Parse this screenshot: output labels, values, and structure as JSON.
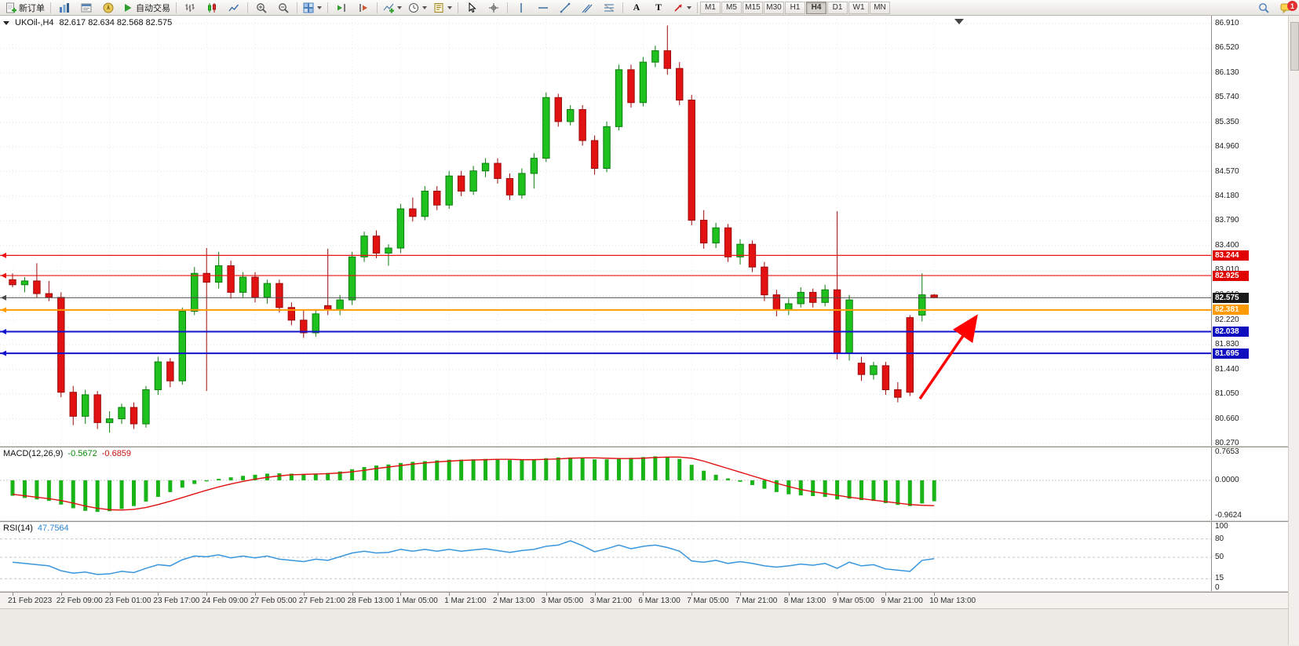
{
  "toolbar": {
    "new_order_label": "新订单",
    "auto_trading_label": "自动交易",
    "text_tool_label": "A",
    "label_tool_label": "T",
    "timeframes": [
      "M1",
      "M5",
      "M15",
      "M30",
      "H1",
      "H4",
      "D1",
      "W1",
      "MN"
    ],
    "active_timeframe": "H4",
    "notification_count": "1",
    "items": [
      {
        "id": "new-order",
        "label": "新订单"
      },
      {
        "id": "sep"
      },
      {
        "id": "market-watch"
      },
      {
        "id": "terminal"
      },
      {
        "id": "navigator"
      },
      {
        "id": "auto-trading",
        "label": "自动交易"
      },
      {
        "id": "sep"
      },
      {
        "id": "bar-chart"
      },
      {
        "id": "candlestick-chart"
      },
      {
        "id": "line-chart"
      },
      {
        "id": "sep"
      },
      {
        "id": "zoom-in"
      },
      {
        "id": "zoom-out"
      },
      {
        "id": "sep"
      },
      {
        "id": "tile-windows",
        "caret": true
      },
      {
        "id": "sep"
      },
      {
        "id": "auto-scroll"
      },
      {
        "id": "chart-shift"
      },
      {
        "id": "sep"
      },
      {
        "id": "indicators",
        "caret": true
      },
      {
        "id": "periods",
        "caret": true
      },
      {
        "id": "templates",
        "caret": true
      },
      {
        "id": "sep"
      },
      {
        "id": "cursor"
      },
      {
        "id": "crosshair"
      },
      {
        "id": "sep"
      },
      {
        "id": "vertical-line"
      },
      {
        "id": "horizontal-line"
      },
      {
        "id": "trendline"
      },
      {
        "id": "channel"
      },
      {
        "id": "fibonacci"
      },
      {
        "id": "sep"
      },
      {
        "id": "text-tool",
        "label": "A"
      },
      {
        "id": "label-tool",
        "label": "T"
      },
      {
        "id": "arrow-tool",
        "caret": true
      },
      {
        "id": "sep"
      },
      {
        "id": "timeframes"
      },
      {
        "id": "spacer"
      },
      {
        "id": "search"
      },
      {
        "id": "chat"
      }
    ]
  },
  "window": {
    "symbol_title": "UKOil-,H4",
    "ohlc": "82.617 82.634 82.568 82.575"
  },
  "chart": {
    "price_axis": [
      "86.910",
      "86.520",
      "86.130",
      "85.740",
      "85.350",
      "84.960",
      "84.570",
      "84.180",
      "83.790",
      "83.400",
      "83.010",
      "82.610",
      "82.220",
      "81.830",
      "81.440",
      "81.050",
      "80.660",
      "80.270"
    ],
    "levels": [
      {
        "value": "83.244",
        "color": "#ee1111",
        "width": 1.2,
        "badge": "#e00000"
      },
      {
        "value": "82.925",
        "color": "#ee1111",
        "width": 1.2,
        "badge": "#e00000"
      },
      {
        "value": "82.575",
        "color": "#4a4a4a",
        "width": 1,
        "badge": "#1a1a1a"
      },
      {
        "value": "82.381",
        "color": "#ff9a00",
        "width": 2,
        "badge": "#ff9a00"
      },
      {
        "value": "82.038",
        "color": "#1212cf",
        "width": 2,
        "badge": "#0f0fc0"
      },
      {
        "value": "81.695",
        "color": "#1212cf",
        "width": 2,
        "badge": "#0f0fc0"
      }
    ],
    "annotations": [
      {
        "type": "arrow",
        "direction": "up-right",
        "color": "#ff0000"
      }
    ],
    "candles": [
      [
        82.86,
        82.96,
        82.74,
        82.78
      ],
      [
        82.78,
        82.9,
        82.66,
        82.84
      ],
      [
        82.84,
        83.12,
        82.58,
        82.64
      ],
      [
        82.64,
        82.84,
        82.52,
        82.58
      ],
      [
        82.58,
        82.66,
        81.0,
        81.08
      ],
      [
        81.08,
        81.18,
        80.56,
        80.7
      ],
      [
        80.7,
        81.12,
        80.58,
        81.04
      ],
      [
        81.04,
        81.1,
        80.5,
        80.6
      ],
      [
        80.6,
        80.78,
        80.44,
        80.66
      ],
      [
        80.66,
        80.9,
        80.58,
        80.84
      ],
      [
        80.84,
        80.92,
        80.5,
        80.58
      ],
      [
        80.58,
        81.18,
        80.52,
        81.12
      ],
      [
        81.12,
        81.64,
        81.04,
        81.56
      ],
      [
        81.56,
        81.62,
        81.16,
        81.26
      ],
      [
        81.26,
        82.42,
        81.2,
        82.36
      ],
      [
        82.36,
        83.06,
        82.3,
        82.96
      ],
      [
        82.96,
        83.36,
        81.1,
        82.82
      ],
      [
        82.82,
        83.3,
        82.72,
        83.08
      ],
      [
        83.08,
        83.16,
        82.56,
        82.66
      ],
      [
        82.66,
        82.98,
        82.58,
        82.9
      ],
      [
        82.9,
        82.98,
        82.5,
        82.58
      ],
      [
        82.58,
        82.86,
        82.48,
        82.8
      ],
      [
        82.8,
        82.86,
        82.34,
        82.42
      ],
      [
        82.42,
        82.5,
        82.14,
        82.22
      ],
      [
        82.22,
        82.38,
        81.94,
        82.02
      ],
      [
        82.02,
        82.38,
        81.96,
        82.32
      ],
      [
        82.45,
        83.35,
        82.3,
        82.38
      ],
      [
        82.38,
        82.62,
        82.3,
        82.54
      ],
      [
        82.54,
        83.3,
        82.46,
        83.22
      ],
      [
        83.22,
        83.62,
        83.14,
        83.55
      ],
      [
        83.55,
        83.64,
        83.2,
        83.28
      ],
      [
        83.28,
        83.42,
        83.08,
        83.36
      ],
      [
        83.36,
        84.06,
        83.28,
        83.98
      ],
      [
        83.98,
        84.16,
        83.78,
        83.86
      ],
      [
        83.86,
        84.34,
        83.8,
        84.26
      ],
      [
        84.26,
        84.34,
        83.96,
        84.04
      ],
      [
        84.04,
        84.58,
        83.98,
        84.5
      ],
      [
        84.5,
        84.58,
        84.18,
        84.26
      ],
      [
        84.26,
        84.66,
        84.2,
        84.58
      ],
      [
        84.58,
        84.78,
        84.48,
        84.7
      ],
      [
        84.7,
        84.78,
        84.38,
        84.46
      ],
      [
        84.46,
        84.54,
        84.12,
        84.2
      ],
      [
        84.2,
        84.62,
        84.14,
        84.54
      ],
      [
        84.54,
        84.86,
        84.3,
        84.78
      ],
      [
        84.78,
        85.82,
        84.72,
        85.74
      ],
      [
        85.74,
        85.8,
        85.28,
        85.36
      ],
      [
        85.36,
        85.62,
        85.3,
        85.55
      ],
      [
        85.55,
        85.62,
        84.98,
        85.06
      ],
      [
        85.06,
        85.14,
        84.52,
        84.62
      ],
      [
        84.62,
        85.36,
        84.56,
        85.28
      ],
      [
        85.28,
        86.26,
        85.22,
        86.18
      ],
      [
        86.18,
        86.26,
        85.58,
        85.66
      ],
      [
        85.66,
        86.38,
        85.6,
        86.3
      ],
      [
        86.3,
        86.56,
        86.22,
        86.48
      ],
      [
        86.48,
        86.88,
        86.1,
        86.2
      ],
      [
        86.2,
        86.3,
        85.62,
        85.7
      ],
      [
        85.7,
        85.78,
        83.72,
        83.8
      ],
      [
        83.8,
        83.96,
        83.35,
        83.44
      ],
      [
        83.44,
        83.76,
        83.36,
        83.68
      ],
      [
        83.68,
        83.74,
        83.14,
        83.22
      ],
      [
        83.22,
        83.5,
        83.1,
        83.42
      ],
      [
        83.42,
        83.48,
        82.98,
        83.06
      ],
      [
        83.06,
        83.14,
        82.52,
        82.62
      ],
      [
        82.62,
        82.7,
        82.28,
        82.38
      ],
      [
        82.38,
        82.56,
        82.3,
        82.48
      ],
      [
        82.48,
        82.74,
        82.42,
        82.66
      ],
      [
        82.66,
        82.72,
        82.42,
        82.5
      ],
      [
        82.5,
        82.78,
        82.44,
        82.7
      ],
      [
        82.7,
        83.94,
        81.6,
        81.7
      ],
      [
        81.7,
        82.62,
        81.58,
        82.54
      ],
      [
        81.54,
        81.64,
        81.26,
        81.36
      ],
      [
        81.36,
        81.56,
        81.28,
        81.5
      ],
      [
        81.5,
        81.56,
        81.04,
        81.12
      ],
      [
        81.12,
        81.24,
        80.92,
        81.0
      ],
      [
        82.26,
        82.3,
        81.02,
        81.08
      ],
      [
        82.3,
        82.96,
        82.2,
        82.62
      ],
      [
        82.617,
        82.634,
        82.568,
        82.575
      ]
    ],
    "time_axis": [
      "21 Feb 2023",
      "22 Feb 09:00",
      "23 Feb 01:00",
      "23 Feb 17:00",
      "24 Feb 09:00",
      "27 Feb 05:00",
      "27 Feb 21:00",
      "28 Feb 13:00",
      "1 Mar 05:00",
      "1 Mar 21:00",
      "2 Mar 13:00",
      "3 Mar 05:00",
      "3 Mar 21:00",
      "6 Mar 13:00",
      "7 Mar 05:00",
      "7 Mar 21:00",
      "8 Mar 13:00",
      "9 Mar 05:00",
      "9 Mar 21:00",
      "10 Mar 13:00"
    ]
  },
  "macd": {
    "label": "MACD(12,26,9)",
    "value_main": "-0.5672",
    "value_signal": "-0.6859",
    "axis": [
      "0.7653",
      "0.0000",
      "-0.9624"
    ],
    "histogram": [
      -0.42,
      -0.48,
      -0.52,
      -0.56,
      -0.66,
      -0.76,
      -0.83,
      -0.86,
      -0.84,
      -0.78,
      -0.7,
      -0.58,
      -0.45,
      -0.32,
      -0.2,
      -0.1,
      -0.03,
      0.04,
      0.08,
      0.12,
      0.15,
      0.18,
      0.19,
      0.18,
      0.17,
      0.18,
      0.2,
      0.24,
      0.3,
      0.36,
      0.4,
      0.43,
      0.47,
      0.5,
      0.52,
      0.54,
      0.56,
      0.56,
      0.57,
      0.58,
      0.57,
      0.55,
      0.55,
      0.57,
      0.6,
      0.62,
      0.62,
      0.6,
      0.57,
      0.57,
      0.6,
      0.61,
      0.63,
      0.65,
      0.64,
      0.58,
      0.42,
      0.26,
      0.15,
      0.05,
      -0.04,
      -0.13,
      -0.23,
      -0.32,
      -0.38,
      -0.41,
      -0.43,
      -0.45,
      -0.52,
      -0.5,
      -0.54,
      -0.56,
      -0.62,
      -0.67,
      -0.7,
      -0.63,
      -0.57
    ],
    "signal": [
      -0.38,
      -0.42,
      -0.46,
      -0.5,
      -0.55,
      -0.62,
      -0.7,
      -0.76,
      -0.8,
      -0.81,
      -0.79,
      -0.74,
      -0.66,
      -0.57,
      -0.47,
      -0.37,
      -0.27,
      -0.18,
      -0.1,
      -0.03,
      0.03,
      0.08,
      0.12,
      0.15,
      0.16,
      0.17,
      0.18,
      0.2,
      0.23,
      0.27,
      0.32,
      0.36,
      0.4,
      0.44,
      0.47,
      0.5,
      0.52,
      0.54,
      0.55,
      0.56,
      0.57,
      0.57,
      0.56,
      0.56,
      0.57,
      0.58,
      0.6,
      0.61,
      0.61,
      0.6,
      0.59,
      0.59,
      0.6,
      0.62,
      0.63,
      0.63,
      0.6,
      0.52,
      0.42,
      0.32,
      0.22,
      0.12,
      0.02,
      -0.08,
      -0.17,
      -0.25,
      -0.31,
      -0.36,
      -0.41,
      -0.46,
      -0.5,
      -0.54,
      -0.58,
      -0.62,
      -0.66,
      -0.68,
      -0.69
    ]
  },
  "rsi": {
    "label": "RSI(14)",
    "value": "47.7564",
    "axis": [
      "100",
      "80",
      "50",
      "15",
      "0"
    ],
    "levels": [
      80,
      50,
      15
    ],
    "values": [
      42,
      40,
      38,
      36,
      28,
      24,
      26,
      22,
      23,
      27,
      25,
      32,
      38,
      36,
      46,
      52,
      51,
      54,
      49,
      52,
      49,
      52,
      47,
      45,
      43,
      47,
      45,
      51,
      57,
      60,
      57,
      58,
      63,
      60,
      63,
      60,
      63,
      60,
      62,
      64,
      61,
      58,
      61,
      63,
      68,
      70,
      77,
      69,
      59,
      64,
      70,
      64,
      68,
      70,
      66,
      60,
      44,
      42,
      45,
      40,
      43,
      40,
      36,
      34,
      36,
      39,
      37,
      40,
      32,
      42,
      36,
      38,
      31,
      29,
      27,
      45,
      47.76
    ]
  }
}
